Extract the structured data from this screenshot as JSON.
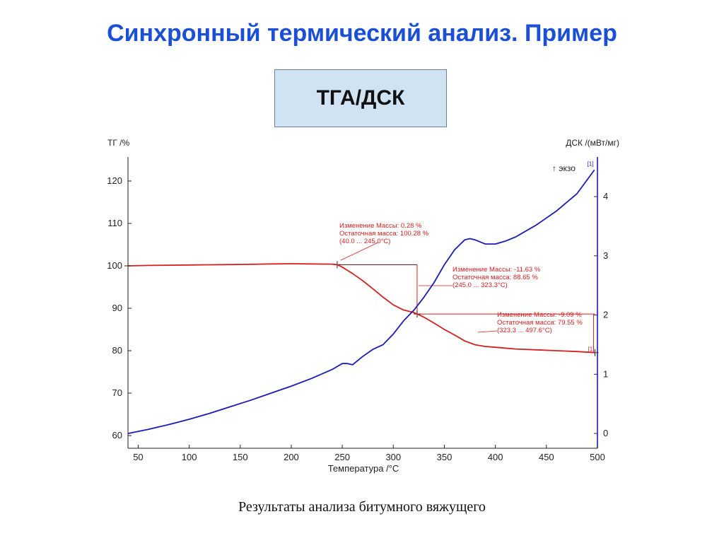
{
  "slide": {
    "title": "Синхронный термический анализ. Пример",
    "method_label": "ТГА/ДСК",
    "caption": "Результаты анализа битумного вяжущего"
  },
  "colors": {
    "title": "#1a4fd6",
    "tg": "#d42020",
    "dsc": "#1b1bb8",
    "axis": "#1b1bb8",
    "box_fill": "#cfe3f3"
  },
  "chart_data": {
    "type": "line",
    "xlabel": "Температура /°C",
    "ylabel_left": "ТГ /%",
    "ylabel_right": "ДСК /(мВт/мг)",
    "exo_label": "↑ экзо",
    "xlim": [
      40,
      500
    ],
    "ylim_left": [
      57,
      124
    ],
    "ylim_right": [
      -0.25,
      4.55
    ],
    "x_ticks": [
      50,
      100,
      150,
      200,
      250,
      300,
      350,
      400,
      450,
      500
    ],
    "y_left_ticks": [
      60,
      70,
      80,
      90,
      100,
      110,
      120
    ],
    "y_right_ticks": [
      0,
      1,
      2,
      3,
      4
    ],
    "series": [
      {
        "key": "tg",
        "axis": "left",
        "end_marker": "[1]",
        "x": [
          40,
          60,
          80,
          100,
          120,
          140,
          160,
          180,
          200,
          220,
          240,
          245,
          250,
          260,
          270,
          280,
          290,
          300,
          310,
          320,
          323.3,
          330,
          340,
          350,
          360,
          370,
          380,
          390,
          400,
          420,
          440,
          460,
          480,
          497.6
        ],
        "y": [
          100.0,
          100.1,
          100.15,
          100.2,
          100.25,
          100.3,
          100.35,
          100.45,
          100.5,
          100.45,
          100.4,
          100.28,
          99.7,
          98.2,
          96.5,
          94.6,
          92.6,
          90.8,
          89.6,
          89.0,
          88.65,
          87.9,
          86.5,
          85.0,
          83.7,
          82.3,
          81.4,
          81.0,
          80.8,
          80.4,
          80.2,
          80.0,
          79.8,
          79.55
        ]
      },
      {
        "key": "dsc",
        "axis": "right",
        "end_marker": "[1]",
        "x": [
          40,
          60,
          80,
          100,
          120,
          140,
          160,
          180,
          200,
          220,
          240,
          250,
          255,
          260,
          270,
          280,
          290,
          300,
          310,
          320,
          330,
          340,
          350,
          360,
          370,
          375,
          380,
          390,
          400,
          410,
          420,
          440,
          460,
          480,
          497
        ],
        "y": [
          0.0,
          0.07,
          0.15,
          0.24,
          0.34,
          0.45,
          0.56,
          0.68,
          0.8,
          0.93,
          1.08,
          1.18,
          1.18,
          1.16,
          1.3,
          1.42,
          1.5,
          1.68,
          1.9,
          2.08,
          2.3,
          2.55,
          2.85,
          3.1,
          3.27,
          3.29,
          3.27,
          3.2,
          3.2,
          3.25,
          3.32,
          3.52,
          3.76,
          4.05,
          4.45
        ]
      }
    ],
    "annotations": [
      {
        "lines": [
          "Изменение Массы:    0.28 %",
          "Остаточная масса:   100.28 %",
          "(40.0 ... 245.0°C)"
        ],
        "range": [
          40.0,
          245.0
        ],
        "mass_change": "0.28 %",
        "residual": "100.28 %"
      },
      {
        "lines": [
          "Изменение Массы:   -11.63 %",
          "Остаточная масса:     88.65 %",
          "(245.0 ... 323.3°C)"
        ],
        "range": [
          245.0,
          323.3
        ],
        "mass_change": "-11.63 %",
        "residual": "88.65 %"
      },
      {
        "lines": [
          "Изменение Массы:    -9.09 %",
          "Остаточная масса:     79.55 %",
          "(323.3 ... 497.6°C)"
        ],
        "range": [
          323.3,
          497.6
        ],
        "mass_change": "-9.09 %",
        "residual": "79.55 %"
      }
    ]
  }
}
